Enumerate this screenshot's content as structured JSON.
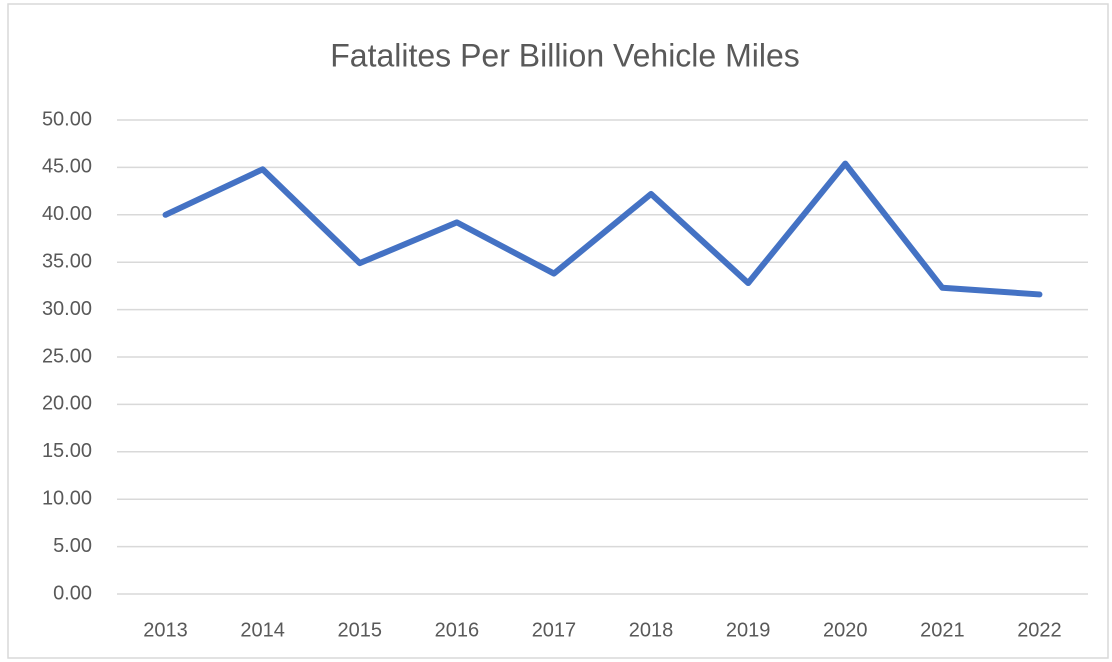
{
  "chart_data": {
    "type": "line",
    "title": "Fatalites Per Billion Vehicle Miles",
    "categories": [
      "2013",
      "2014",
      "2015",
      "2016",
      "2017",
      "2018",
      "2019",
      "2020",
      "2021",
      "2022"
    ],
    "series": [
      {
        "name": "Fatalites Per Billion Vehicle Miles",
        "color": "#4472c4",
        "values": [
          40.0,
          44.8,
          34.9,
          39.2,
          33.8,
          42.2,
          32.8,
          45.4,
          32.3,
          31.6
        ]
      }
    ],
    "ylim": [
      0,
      50
    ],
    "yticks": [
      {
        "value": 0,
        "label": "0.00"
      },
      {
        "value": 5,
        "label": "5.00"
      },
      {
        "value": 10,
        "label": "10.00"
      },
      {
        "value": 15,
        "label": "15.00"
      },
      {
        "value": 20,
        "label": "20.00"
      },
      {
        "value": 25,
        "label": "25.00"
      },
      {
        "value": 30,
        "label": "30.00"
      },
      {
        "value": 35,
        "label": "35.00"
      },
      {
        "value": 40,
        "label": "40.00"
      },
      {
        "value": 45,
        "label": "45.00"
      },
      {
        "value": 50,
        "label": "50.00"
      }
    ],
    "grid": true
  }
}
